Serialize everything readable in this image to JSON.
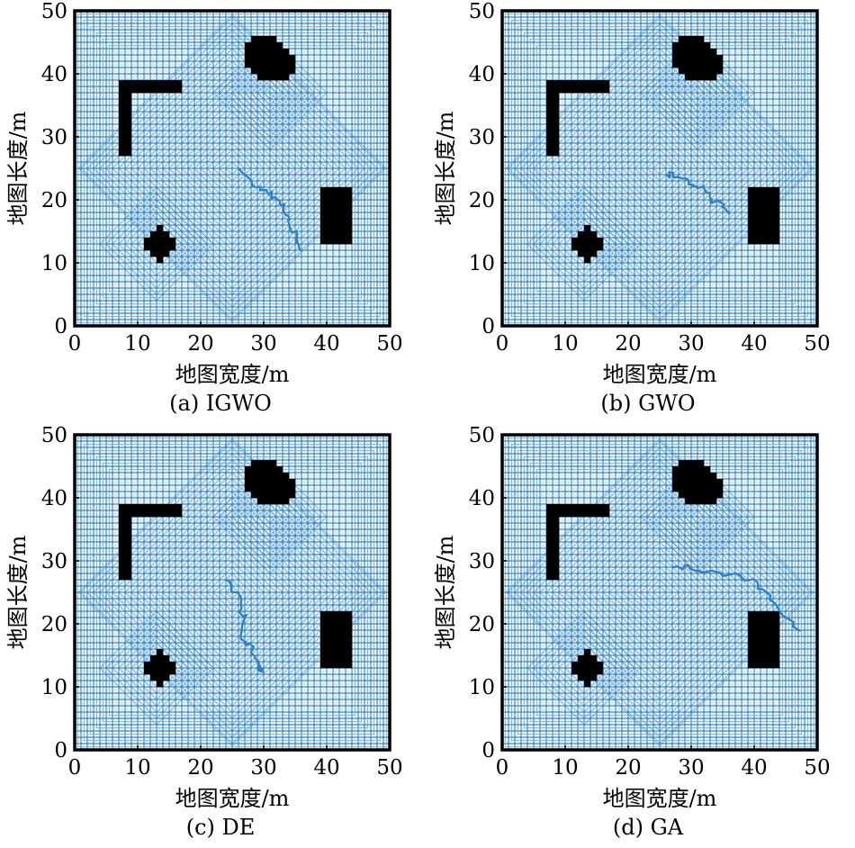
{
  "figure": {
    "x_label": "地图宽度/m",
    "y_label": "地图长度/m",
    "x_ticks": [
      "0",
      "10",
      "20",
      "30",
      "40",
      "50"
    ],
    "y_ticks": [
      "0",
      "10",
      "20",
      "30",
      "40",
      "50"
    ]
  },
  "colors": {
    "path": "#2f7fbf",
    "obstacle": "#000000",
    "frame": "#000000",
    "background": "#ffffff"
  },
  "chart_data": [
    {
      "type": "grid-path",
      "caption": "(a) IGWO",
      "xlabel": "地图宽度/m",
      "ylabel": "地图长度/m",
      "xlim": [
        0,
        50
      ],
      "ylim": [
        0,
        50
      ],
      "grid_step": 1,
      "obstacles": [
        {
          "shape": "L",
          "cells": [
            [
              7,
              27,
              9,
              39
            ],
            [
              7,
              37,
              17,
              39
            ]
          ]
        },
        {
          "shape": "blob",
          "center": [
            31,
            42
          ],
          "radius": 4
        },
        {
          "shape": "rect",
          "x": [
            39,
            44
          ],
          "y": [
            13,
            22
          ]
        },
        {
          "shape": "diamond",
          "center": [
            13.5,
            13
          ],
          "radius": 3
        }
      ],
      "path_notes": "dense back-and-forth coverage path with a winding segment from (26,25) to (36,12)"
    },
    {
      "type": "grid-path",
      "caption": "(b) GWO",
      "xlabel": "地图宽度/m",
      "ylabel": "地图长度/m",
      "xlim": [
        0,
        50
      ],
      "ylim": [
        0,
        50
      ],
      "grid_step": 1,
      "obstacles": [
        {
          "shape": "L",
          "cells": [
            [
              7,
              27,
              9,
              39
            ],
            [
              7,
              37,
              17,
              39
            ]
          ]
        },
        {
          "shape": "blob",
          "center": [
            31,
            42
          ],
          "radius": 4
        },
        {
          "shape": "rect",
          "x": [
            39,
            44
          ],
          "y": [
            13,
            22
          ]
        },
        {
          "shape": "diamond",
          "center": [
            13.5,
            13
          ],
          "radius": 3
        }
      ],
      "path_notes": "coverage path with winding segments near (26,24)-(36,18)"
    },
    {
      "type": "grid-path",
      "caption": "(c) DE",
      "xlabel": "地图宽度/m",
      "ylabel": "地图长度/m",
      "xlim": [
        0,
        50
      ],
      "ylim": [
        0,
        50
      ],
      "grid_step": 1,
      "obstacles": [
        {
          "shape": "L",
          "cells": [
            [
              7,
              27,
              9,
              39
            ],
            [
              7,
              37,
              17,
              39
            ]
          ]
        },
        {
          "shape": "blob",
          "center": [
            31,
            42
          ],
          "radius": 4
        },
        {
          "shape": "rect",
          "x": [
            39,
            44
          ],
          "y": [
            13,
            22
          ]
        },
        {
          "shape": "diamond",
          "center": [
            13.5,
            13
          ],
          "radius": 3
        }
      ],
      "path_notes": "coverage path with irregular wandering segments near (24,27)-(30,12)"
    },
    {
      "type": "grid-path",
      "caption": "(d) GA",
      "xlabel": "地图宽度/m",
      "ylabel": "地图长度/m",
      "xlim": [
        0,
        50
      ],
      "ylim": [
        0,
        50
      ],
      "grid_step": 1,
      "obstacles": [
        {
          "shape": "L",
          "cells": [
            [
              7,
              27,
              9,
              39
            ],
            [
              7,
              37,
              17,
              39
            ]
          ]
        },
        {
          "shape": "blob",
          "center": [
            31,
            42
          ],
          "radius": 4
        },
        {
          "shape": "rect",
          "x": [
            39,
            44
          ],
          "y": [
            13,
            22
          ]
        },
        {
          "shape": "diamond",
          "center": [
            13.5,
            13
          ],
          "radius": 3
        }
      ],
      "path_notes": "coverage path with long straight segments near (27,29)-(47,19)"
    }
  ]
}
